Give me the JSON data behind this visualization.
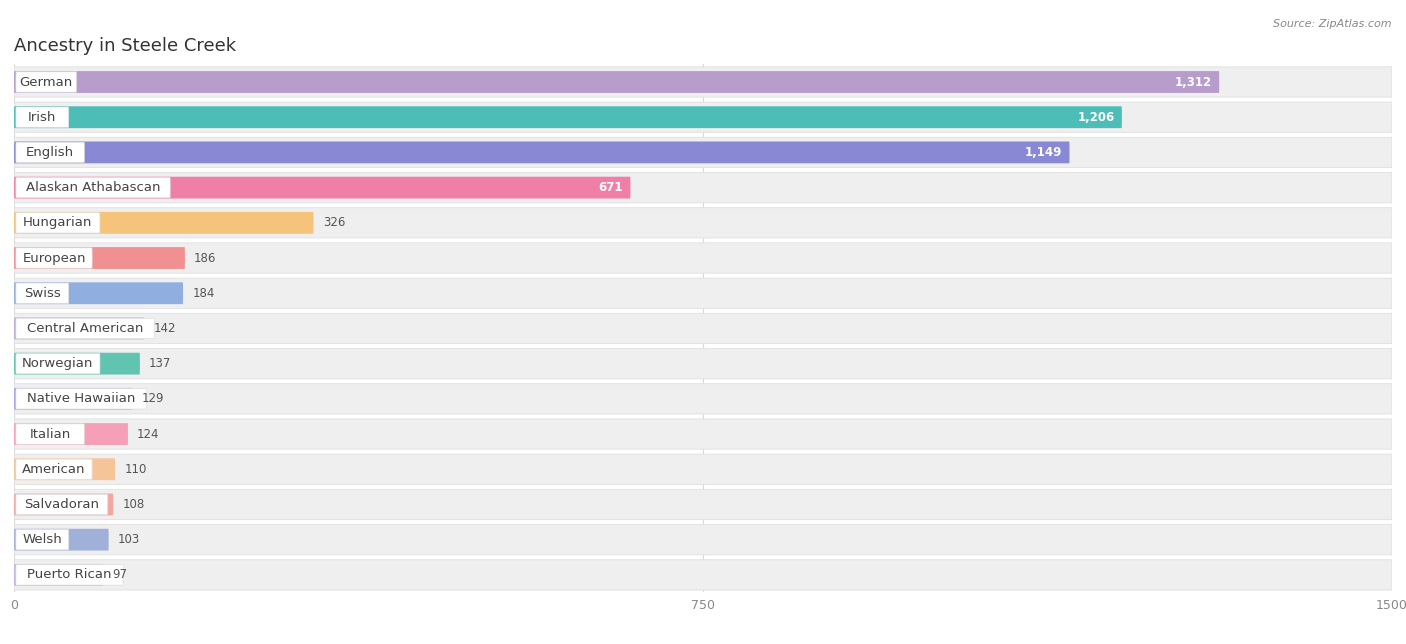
{
  "title": "Ancestry in Steele Creek",
  "source": "Source: ZipAtlas.com",
  "categories": [
    "German",
    "Irish",
    "English",
    "Alaskan Athabascan",
    "Hungarian",
    "European",
    "Swiss",
    "Central American",
    "Norwegian",
    "Native Hawaiian",
    "Italian",
    "American",
    "Salvadoran",
    "Welsh",
    "Puerto Rican"
  ],
  "values": [
    1312,
    1206,
    1149,
    671,
    326,
    186,
    184,
    142,
    137,
    129,
    124,
    110,
    108,
    103,
    97
  ],
  "colors": [
    "#b89dcc",
    "#4dbdb8",
    "#8888d4",
    "#f07fa8",
    "#f5c47a",
    "#f09090",
    "#90aee0",
    "#c0a8d8",
    "#60c4b0",
    "#a0a8e0",
    "#f5a0b8",
    "#f5c498",
    "#f0a8a0",
    "#a0b0d8",
    "#c4b0e0"
  ],
  "max_val": 1500,
  "xticks": [
    0,
    750,
    1500
  ],
  "bg_color": "#f8f8f8",
  "row_bg_color": "#efefef",
  "row_bg_border": "#e0e0e0",
  "title_fontsize": 13,
  "label_fontsize": 9.5,
  "value_fontsize": 8.5,
  "source_fontsize": 8
}
